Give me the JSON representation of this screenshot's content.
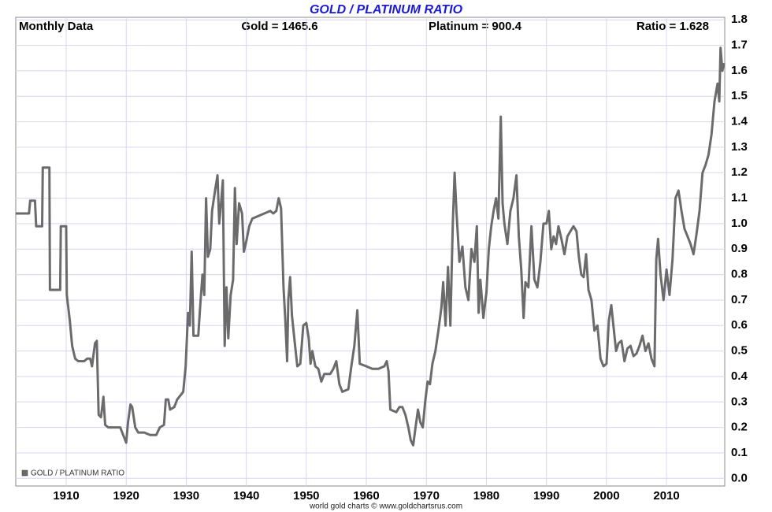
{
  "chart_data": {
    "type": "line",
    "title": "GOLD / PLATINUM RATIO",
    "annotations": [
      "Monthly Data",
      "Gold = 1465.6",
      "Platinum = 900.4",
      "Ratio = 1.628"
    ],
    "footer": "world gold charts © www.goldchartsrus.com",
    "grid": true,
    "legend": "lower left",
    "xlim": [
      1901.6,
      2019.7
    ],
    "xticks": [
      1910,
      1920,
      1930,
      1940,
      1950,
      1960,
      1970,
      1980,
      1990,
      2000,
      2010
    ],
    "ylim": [
      -0.03,
      1.81
    ],
    "yticks": [
      {
        "value": 0,
        "label": "0.0"
      },
      0.1,
      0.2,
      0.3,
      0.4,
      0.5,
      0.6,
      0.7,
      0.8,
      0.9,
      {
        "value": 1,
        "label": "1.0"
      },
      1.1,
      1.2,
      1.3,
      1.4,
      1.5,
      1.6,
      1.7,
      1.8
    ],
    "x": [
      1901.6,
      1903.8,
      1904,
      1904.8,
      1905,
      1906,
      1906.1,
      1907.2,
      1907.3,
      1909,
      1909.1,
      1910,
      1910.1,
      1910.6,
      1911,
      1911.5,
      1912,
      1913,
      1913.5,
      1914,
      1914.3,
      1914.8,
      1915.1,
      1915.4,
      1915.8,
      1916.2,
      1916.5,
      1917,
      1918,
      1919,
      1919.5,
      1920,
      1920.3,
      1920.7,
      1921,
      1921.5,
      1922,
      1923,
      1924,
      1925,
      1925.6,
      1926.3,
      1926.6,
      1927,
      1927.3,
      1928,
      1928.5,
      1929.5,
      1929.9,
      1930.3,
      1930.6,
      1930.9,
      1931.2,
      1932,
      1932.3,
      1932.7,
      1933,
      1933.3,
      1933.6,
      1934,
      1934.3,
      1934.8,
      1935.2,
      1935.5,
      1935.8,
      1936.1,
      1936.4,
      1936.7,
      1937,
      1937.4,
      1937.8,
      1938.1,
      1938.4,
      1938.8,
      1939.3,
      1939.6,
      1940,
      1940.5,
      1941,
      1942,
      1943,
      1944,
      1944.5,
      1945,
      1945.4,
      1945.8,
      1946.2,
      1946.5,
      1946.8,
      1947,
      1947.3,
      1947.6,
      1948,
      1948.5,
      1949,
      1949.5,
      1950,
      1950.4,
      1950.7,
      1951,
      1951.5,
      1952,
      1952.5,
      1953,
      1954,
      1954.5,
      1955,
      1955.5,
      1956,
      1957,
      1957.5,
      1958,
      1958.5,
      1958.9,
      1960,
      1961,
      1962,
      1963,
      1963.4,
      1963.7,
      1964,
      1965,
      1965.5,
      1966,
      1966.5,
      1967,
      1967.4,
      1967.8,
      1968.2,
      1968.6,
      1969,
      1969.4,
      1969.8,
      1970.2,
      1970.6,
      1971,
      1971.5,
      1972,
      1972.5,
      1972.8,
      1973.2,
      1973.6,
      1974,
      1974.4,
      1974.7,
      1975,
      1975.5,
      1976,
      1976.5,
      1977,
      1977.5,
      1978,
      1978.4,
      1978.7,
      1979,
      1979.5,
      1980,
      1980.4,
      1980.8,
      1981.2,
      1981.6,
      1982,
      1982.4,
      1982.7,
      1983,
      1983.5,
      1984,
      1984.5,
      1985,
      1985.4,
      1985.8,
      1986.2,
      1986.5,
      1987,
      1987.5,
      1988,
      1988.5,
      1989,
      1989.5,
      1990,
      1990.4,
      1990.8,
      1991.2,
      1991.6,
      1992,
      1992.5,
      1993,
      1993.5,
      1994,
      1994.5,
      1995,
      1995.4,
      1995.8,
      1996.2,
      1996.6,
      1997,
      1997.5,
      1998,
      1998.5,
      1999,
      1999.5,
      2000,
      2000.4,
      2000.8,
      2001.2,
      2001.6,
      2002,
      2002.5,
      2003,
      2003.5,
      2004,
      2004.5,
      2005,
      2005.5,
      2006,
      2006.5,
      2007,
      2007.5,
      2008,
      2008.3,
      2008.6,
      2009,
      2009.5,
      2010,
      2010.5,
      2011,
      2011.5,
      2012,
      2012.5,
      2013,
      2013.5,
      2014,
      2014.5,
      2015,
      2015.5,
      2016,
      2016.5,
      2017,
      2017.5,
      2018,
      2018.5,
      2018.8,
      2019,
      2019.3,
      2019.6
    ],
    "series": [
      {
        "name": "GOLD / PLATINUM RATIO",
        "color": "#6b6b6b",
        "values": [
          1.04,
          1.04,
          1.09,
          1.09,
          0.99,
          0.99,
          1.22,
          1.22,
          0.74,
          0.74,
          0.99,
          0.99,
          0.72,
          0.62,
          0.52,
          0.47,
          0.46,
          0.46,
          0.47,
          0.47,
          0.44,
          0.53,
          0.54,
          0.25,
          0.24,
          0.32,
          0.21,
          0.2,
          0.2,
          0.2,
          0.17,
          0.14,
          0.22,
          0.29,
          0.28,
          0.2,
          0.18,
          0.18,
          0.17,
          0.17,
          0.2,
          0.21,
          0.31,
          0.31,
          0.27,
          0.28,
          0.31,
          0.34,
          0.44,
          0.65,
          0.6,
          0.89,
          0.56,
          0.56,
          0.67,
          0.8,
          0.72,
          1.1,
          0.87,
          0.9,
          1.05,
          1.13,
          1.19,
          1.0,
          1.08,
          1.17,
          0.52,
          0.75,
          0.55,
          0.72,
          0.78,
          1.14,
          0.92,
          1.08,
          1.04,
          0.89,
          0.93,
          0.99,
          1.02,
          1.03,
          1.04,
          1.05,
          1.04,
          1.05,
          1.1,
          1.06,
          0.75,
          0.62,
          0.46,
          0.7,
          0.79,
          0.64,
          0.55,
          0.44,
          0.45,
          0.6,
          0.61,
          0.55,
          0.45,
          0.5,
          0.44,
          0.43,
          0.38,
          0.41,
          0.41,
          0.43,
          0.46,
          0.37,
          0.34,
          0.35,
          0.44,
          0.52,
          0.66,
          0.45,
          0.44,
          0.43,
          0.43,
          0.44,
          0.46,
          0.42,
          0.27,
          0.26,
          0.28,
          0.28,
          0.25,
          0.2,
          0.15,
          0.13,
          0.2,
          0.27,
          0.22,
          0.2,
          0.3,
          0.38,
          0.37,
          0.45,
          0.5,
          0.58,
          0.67,
          0.77,
          0.6,
          0.83,
          0.6,
          1.0,
          1.2,
          1.05,
          0.85,
          0.91,
          0.75,
          0.7,
          0.9,
          0.85,
          0.99,
          0.65,
          0.78,
          0.63,
          0.73,
          0.9,
          0.99,
          1.05,
          1.1,
          1.02,
          1.42,
          1.08,
          1.0,
          0.92,
          1.05,
          1.1,
          1.19,
          0.95,
          0.82,
          0.63,
          0.77,
          0.75,
          0.99,
          0.78,
          0.75,
          0.85,
          1.0,
          1.0,
          1.05,
          0.9,
          0.95,
          0.92,
          0.99,
          0.94,
          0.88,
          0.95,
          0.97,
          0.99,
          0.97,
          0.87,
          0.8,
          0.79,
          0.88,
          0.74,
          0.7,
          0.58,
          0.6,
          0.47,
          0.44,
          0.45,
          0.62,
          0.68,
          0.59,
          0.5,
          0.53,
          0.54,
          0.46,
          0.51,
          0.52,
          0.48,
          0.49,
          0.52,
          0.56,
          0.5,
          0.53,
          0.47,
          0.44,
          0.86,
          0.94,
          0.8,
          0.7,
          0.82,
          0.72,
          0.86,
          1.1,
          1.13,
          1.05,
          0.98,
          0.95,
          0.92,
          0.88,
          0.96,
          1.05,
          1.2,
          1.23,
          1.27,
          1.35,
          1.48,
          1.55,
          1.48,
          1.69,
          1.6,
          1.63
        ]
      }
    ]
  }
}
